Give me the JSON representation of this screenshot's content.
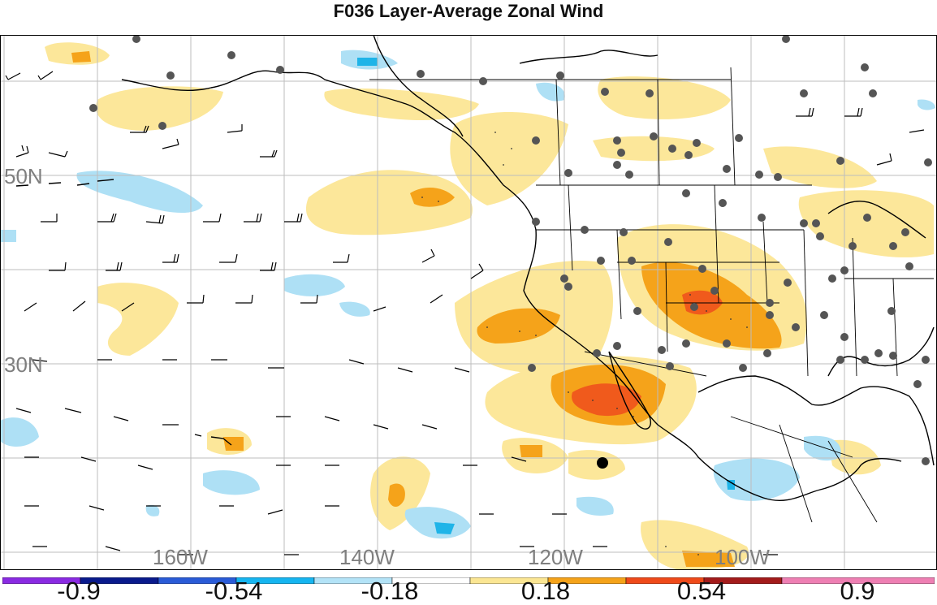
{
  "title": "F036 Layer-Average Zonal Wind",
  "map": {
    "lat_labels": [
      "50N",
      "30N"
    ],
    "lon_labels": [
      "160W",
      "140W",
      "120W",
      "100W"
    ],
    "label_color": "#7f7f7f",
    "grid_color": "#bdbdbd",
    "station_marker_color": "#555555",
    "highlight_marker_color": "#000000",
    "fill_colors": {
      "light_blue": "#aee0f5",
      "cyan": "#1fb4e8",
      "light_yellow": "#fce79a",
      "orange": "#f5a31a",
      "red_orange": "#f05a1c"
    }
  },
  "colorbar": {
    "tick_labels": [
      "-0.9",
      "-0.54",
      "-0.18",
      "0.18",
      "0.54",
      "0.9"
    ],
    "segment_colors": [
      "#8a2be2",
      "#0a1a8c",
      "#2a5bd7",
      "#16b5f0",
      "#b3e3f7",
      "#ffffff",
      "#fbe693",
      "#f5a31a",
      "#ef4a1a",
      "#a31b1b",
      "#ee7fb3"
    ]
  }
}
